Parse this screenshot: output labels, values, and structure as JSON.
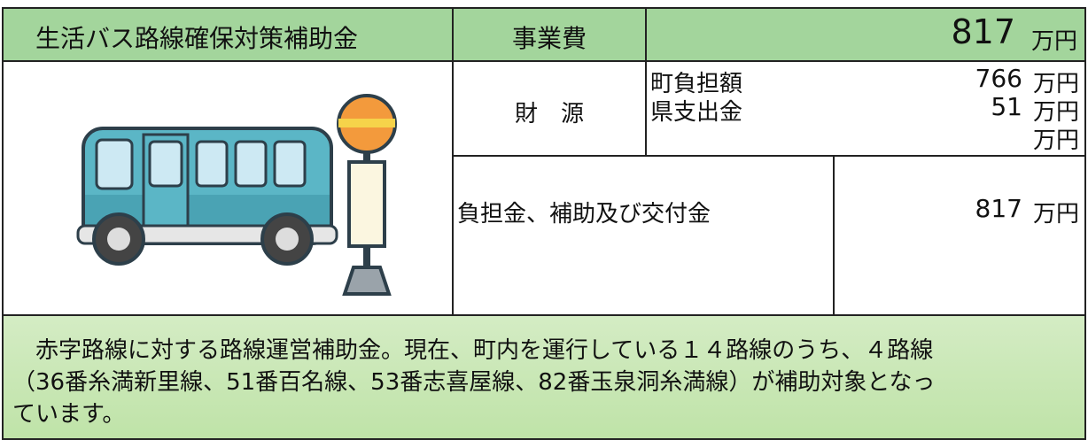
{
  "header": {
    "title": "生活バス路線確保対策補助金",
    "cost_label": "事業費",
    "cost_value": 817,
    "unit": "万円"
  },
  "funding": {
    "label": "財　源",
    "rows": [
      {
        "label": "町負担額",
        "value": 766
      },
      {
        "label": "県支出金",
        "value": 51
      }
    ]
  },
  "subsidy": {
    "label": "負担金、補助及び交付金",
    "value": 817
  },
  "description": [
    "　赤字路線に対する路線運営補助金。現在、町内を運行している１４路線のうち、４路線",
    "（36番糸満新里線、51番百名線、53番志喜屋線、82番玉泉洞糸満線）が補助対象となっ",
    "ています。"
  ]
}
